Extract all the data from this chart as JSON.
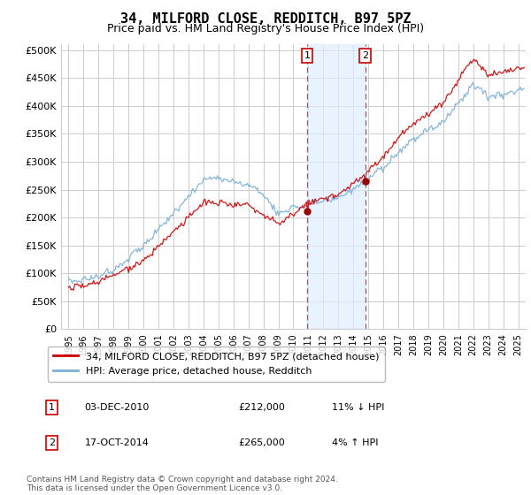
{
  "title": "34, MILFORD CLOSE, REDDITCH, B97 5PZ",
  "subtitle": "Price paid vs. HM Land Registry's House Price Index (HPI)",
  "title_fontsize": 11,
  "subtitle_fontsize": 9,
  "ylabel_ticks": [
    0,
    50000,
    100000,
    150000,
    200000,
    250000,
    300000,
    350000,
    400000,
    450000,
    500000
  ],
  "ylabel_labels": [
    "£0",
    "£50K",
    "£100K",
    "£150K",
    "£200K",
    "£250K",
    "£300K",
    "£350K",
    "£400K",
    "£450K",
    "£500K"
  ],
  "xlim": [
    1994.5,
    2025.5
  ],
  "ylim": [
    0,
    510000
  ],
  "marker1_x": 2010.92,
  "marker2_x": 2014.79,
  "marker1_y": 212000,
  "marker2_y": 265000,
  "sale1_date": "03-DEC-2010",
  "sale1_price": "£212,000",
  "sale1_hpi": "11% ↓ HPI",
  "sale2_date": "17-OCT-2014",
  "sale2_price": "£265,000",
  "sale2_hpi": "4% ↑ HPI",
  "legend_line1": "34, MILFORD CLOSE, REDDITCH, B97 5PZ (detached house)",
  "legend_line2": "HPI: Average price, detached house, Redditch",
  "footnote": "Contains HM Land Registry data © Crown copyright and database right 2024.\nThis data is licensed under the Open Government Licence v3.0.",
  "line_color_red": "#cc0000",
  "line_color_blue": "#7bafd4",
  "background_color": "#ffffff",
  "grid_color": "#cccccc",
  "shade_color": "#ddeeff"
}
